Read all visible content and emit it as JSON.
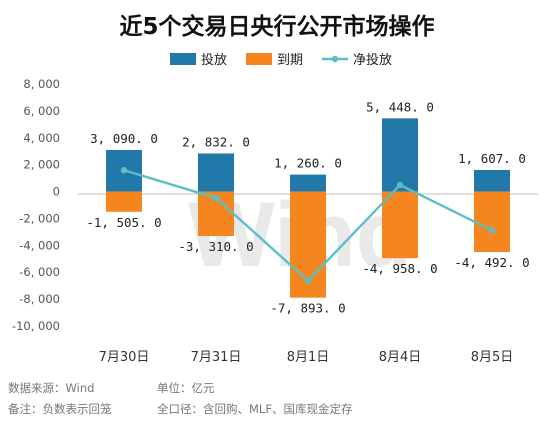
{
  "chart_data": {
    "type": "bar",
    "title": "近5个交易日央行公开市场操作",
    "categories": [
      "7月30日",
      "7月31日",
      "8月1日",
      "8月4日",
      "8月5日"
    ],
    "series": [
      {
        "name": "投放",
        "type": "bar",
        "color": "#2278a8",
        "values": [
          3090.0,
          2832.0,
          1260.0,
          5448.0,
          1607.0
        ],
        "labels": [
          "3, 090. 0",
          "2, 832. 0",
          "1, 260. 0",
          "5, 448. 0",
          "1, 607. 0"
        ]
      },
      {
        "name": "到期",
        "type": "bar",
        "color": "#f5861f",
        "values": [
          -1505.0,
          -3310.0,
          -7893.0,
          -4958.0,
          -4492.0
        ],
        "labels": [
          "-1, 505. 0",
          "-3, 310. 0",
          "-7, 893. 0",
          "-4, 958. 0",
          "-4, 492. 0"
        ]
      },
      {
        "name": "净投放",
        "type": "line",
        "color": "#5bbfc4",
        "values": [
          1585.0,
          -478.0,
          -6633.0,
          490.0,
          -2885.0
        ]
      }
    ],
    "ylim": [
      -10000,
      8000
    ],
    "yticks": [
      8000,
      6000,
      4000,
      2000,
      0,
      -2000,
      -4000,
      -6000,
      -8000,
      -10000
    ],
    "ytick_labels": [
      "8, 000",
      "6, 000",
      "4, 000",
      "2, 000",
      "0",
      "-2, 000",
      "-4, 000",
      "-6, 000",
      "-8, 000",
      "-10, 000"
    ],
    "grid": false,
    "legend_position": "top"
  },
  "watermark": "Wind",
  "footer": {
    "source": "数据来源：Wind",
    "unit": "单位：亿元",
    "note": "备注：负数表示回笼",
    "scope": "全口径：含回购、MLF、国库现金定存"
  }
}
